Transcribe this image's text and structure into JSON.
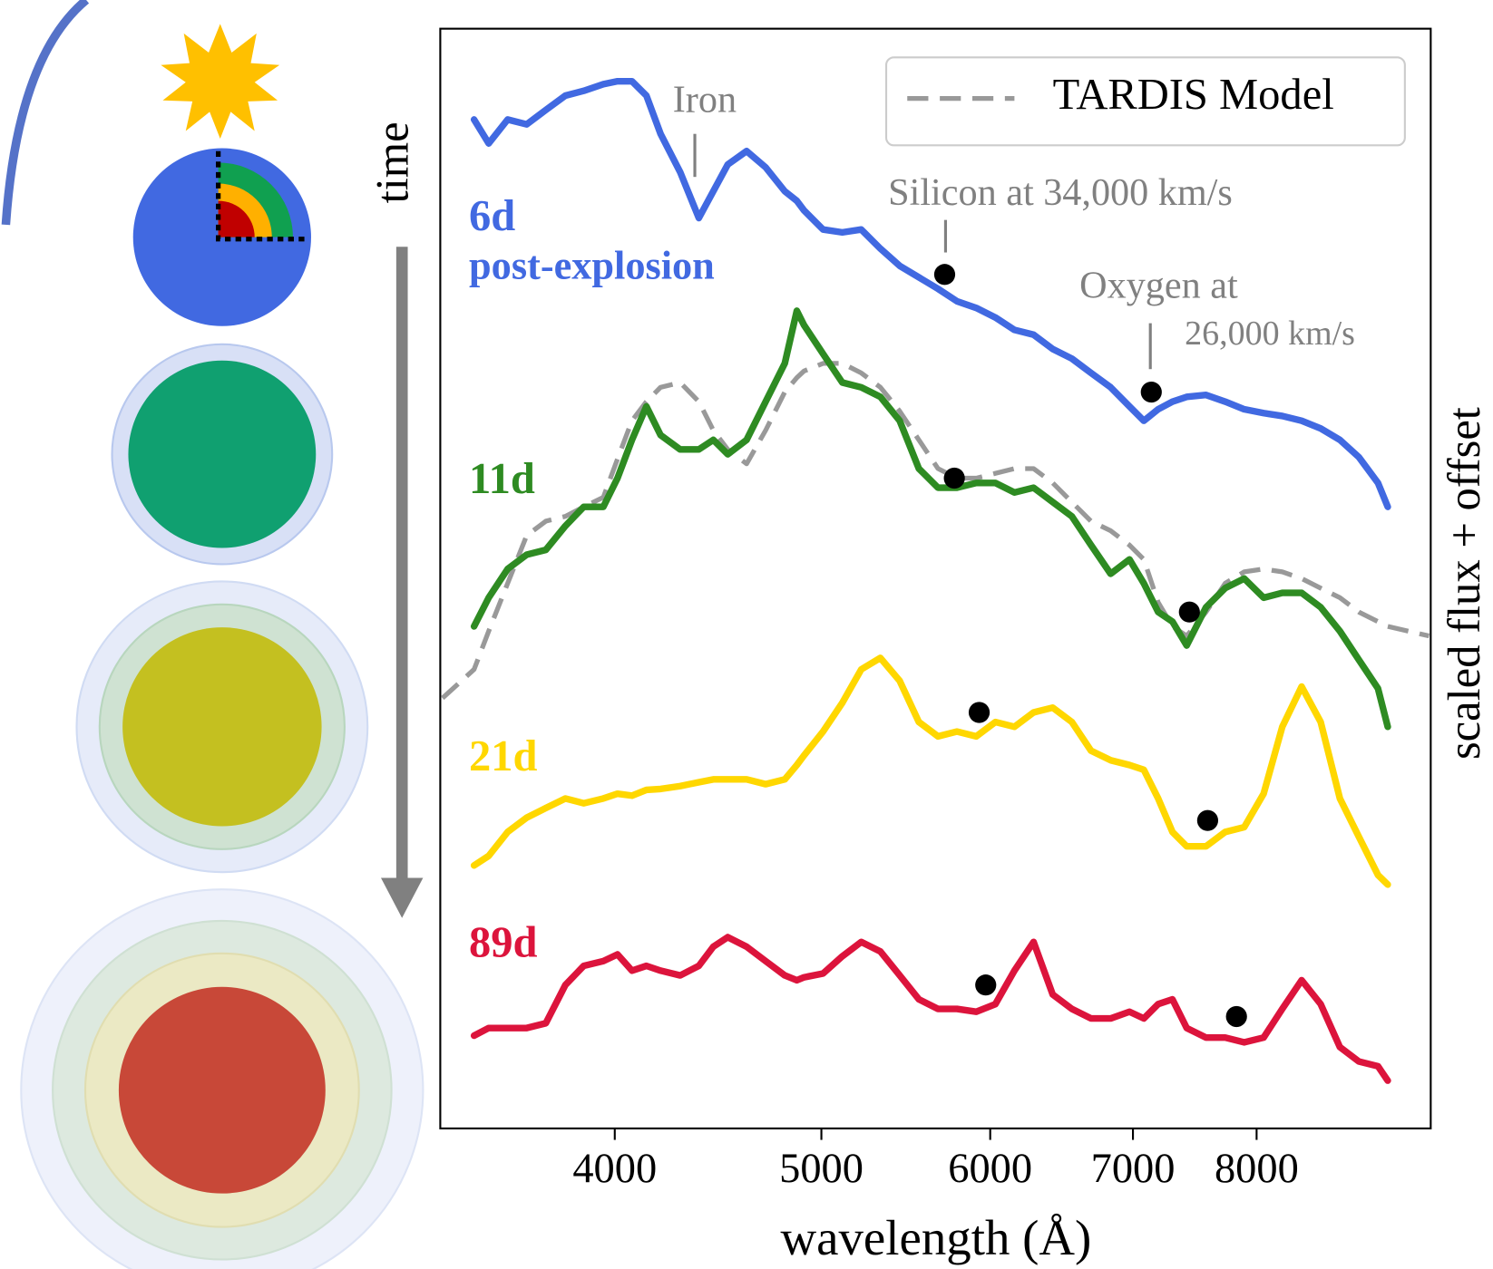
{
  "time_label": "time",
  "chart_data": {
    "type": "line",
    "xlabel": "wavelength (Å)",
    "ylabel": "scaled flux + offset",
    "xscale": "log",
    "xlim": [
      3313,
      9655
    ],
    "xticks": [
      4000,
      5000,
      6000,
      7000,
      8000
    ],
    "ylim": [
      0,
      11.5
    ],
    "legend": "upper right",
    "x": [
      3321,
      3436,
      3491,
      3563,
      3637,
      3713,
      3792,
      3868,
      3951,
      4012,
      4075,
      4139,
      4203,
      4293,
      4380,
      4449,
      4519,
      4612,
      4708,
      4806,
      4869,
      4907,
      5009,
      5114,
      5220,
      5329,
      5441,
      5555,
      5671,
      5788,
      5910,
      6034,
      6159,
      6288,
      6419,
      6553,
      6690,
      6833,
      6974,
      7083,
      7193,
      7305,
      7418,
      7575,
      7733,
      7894,
      8061,
      8225,
      8399,
      8573,
      8753,
      8934,
      9121,
      9217,
      9637
    ],
    "series": [
      {
        "name": "6d",
        "note": "post-explosion",
        "color": "#4169e1",
        "style": "solid",
        "values": [
          null,
          10.55,
          10.3,
          10.55,
          10.5,
          10.65,
          10.8,
          10.85,
          10.92,
          10.95,
          10.95,
          10.8,
          10.4,
          10.0,
          9.52,
          9.8,
          10.08,
          10.22,
          10.05,
          9.8,
          9.7,
          9.6,
          9.4,
          9.37,
          9.4,
          9.2,
          9.02,
          8.9,
          8.78,
          8.65,
          8.58,
          8.48,
          8.35,
          8.3,
          8.15,
          8.05,
          7.9,
          7.75,
          7.55,
          7.4,
          7.52,
          7.6,
          7.65,
          7.67,
          7.6,
          7.52,
          7.48,
          7.45,
          7.4,
          7.32,
          7.2,
          7.02,
          6.75,
          6.5,
          null
        ]
      },
      {
        "name": "11d",
        "color": "#2e8b22",
        "style": "solid",
        "values": [
          null,
          5.25,
          5.55,
          5.85,
          6.0,
          6.05,
          6.3,
          6.5,
          6.5,
          6.8,
          7.2,
          7.55,
          7.25,
          7.1,
          7.1,
          7.2,
          7.05,
          7.2,
          7.6,
          8.0,
          8.55,
          8.4,
          8.1,
          7.8,
          7.75,
          7.65,
          7.4,
          6.9,
          6.7,
          6.7,
          6.75,
          6.75,
          6.65,
          6.7,
          6.55,
          6.4,
          6.1,
          5.8,
          5.95,
          5.7,
          5.4,
          5.3,
          5.05,
          5.45,
          5.65,
          5.75,
          5.55,
          5.6,
          5.6,
          5.45,
          5.2,
          4.9,
          4.6,
          4.2,
          null
        ]
      },
      {
        "name": "TARDIS Model",
        "color": "#999999",
        "style": "dashed",
        "legend": true,
        "values": [
          4.5,
          4.8,
          5.2,
          5.7,
          6.2,
          6.35,
          6.4,
          6.5,
          6.6,
          7.0,
          7.4,
          7.6,
          7.75,
          7.8,
          7.6,
          7.3,
          7.1,
          6.95,
          7.3,
          7.7,
          7.85,
          7.92,
          8.0,
          8.0,
          7.9,
          7.75,
          7.5,
          7.2,
          6.9,
          6.8,
          6.8,
          6.85,
          6.9,
          6.9,
          6.75,
          6.55,
          6.35,
          6.25,
          6.1,
          5.95,
          5.5,
          5.25,
          5.15,
          5.4,
          5.7,
          5.82,
          5.85,
          5.82,
          5.75,
          5.65,
          5.55,
          5.4,
          5.3,
          5.25,
          5.15
        ]
      },
      {
        "name": "21d",
        "color": "#ffd700",
        "style": "solid",
        "values": [
          null,
          2.75,
          2.85,
          3.1,
          3.25,
          3.35,
          3.45,
          3.4,
          3.45,
          3.5,
          3.48,
          3.54,
          3.55,
          3.58,
          3.62,
          3.65,
          3.65,
          3.65,
          3.6,
          3.65,
          3.8,
          3.9,
          4.15,
          4.45,
          4.8,
          4.92,
          4.68,
          4.25,
          4.1,
          4.15,
          4.1,
          4.25,
          4.2,
          4.35,
          4.4,
          4.25,
          3.95,
          3.85,
          3.8,
          3.75,
          3.45,
          3.1,
          2.95,
          2.95,
          3.1,
          3.15,
          3.5,
          4.2,
          4.62,
          4.25,
          3.45,
          3.05,
          2.65,
          2.55,
          null
        ]
      },
      {
        "name": "89d",
        "color": "#dc143c",
        "style": "solid",
        "values": [
          null,
          0.97,
          1.05,
          1.05,
          1.05,
          1.1,
          1.5,
          1.7,
          1.75,
          1.82,
          1.65,
          1.7,
          1.65,
          1.6,
          1.7,
          1.9,
          2.0,
          1.9,
          1.75,
          1.6,
          1.55,
          1.58,
          1.62,
          1.8,
          1.95,
          1.85,
          1.6,
          1.35,
          1.25,
          1.25,
          1.22,
          1.3,
          1.65,
          1.95,
          1.4,
          1.25,
          1.15,
          1.15,
          1.22,
          1.15,
          1.3,
          1.35,
          1.05,
          0.95,
          0.95,
          0.9,
          0.95,
          1.25,
          1.55,
          1.3,
          0.85,
          0.7,
          0.65,
          0.5,
          null
        ]
      }
    ],
    "markers": {
      "color": "#000000",
      "x": [
        5712,
        7140,
        5772,
        7440,
        5929,
        7588,
        5971,
        7828
      ],
      "values": [
        8.93,
        7.7,
        6.8,
        5.4,
        4.35,
        3.22,
        1.5,
        1.17
      ]
    },
    "annotations": [
      "Iron",
      "Silicon at 34,000 km/s",
      "Oxygen at",
      "26,000 km/s"
    ]
  }
}
